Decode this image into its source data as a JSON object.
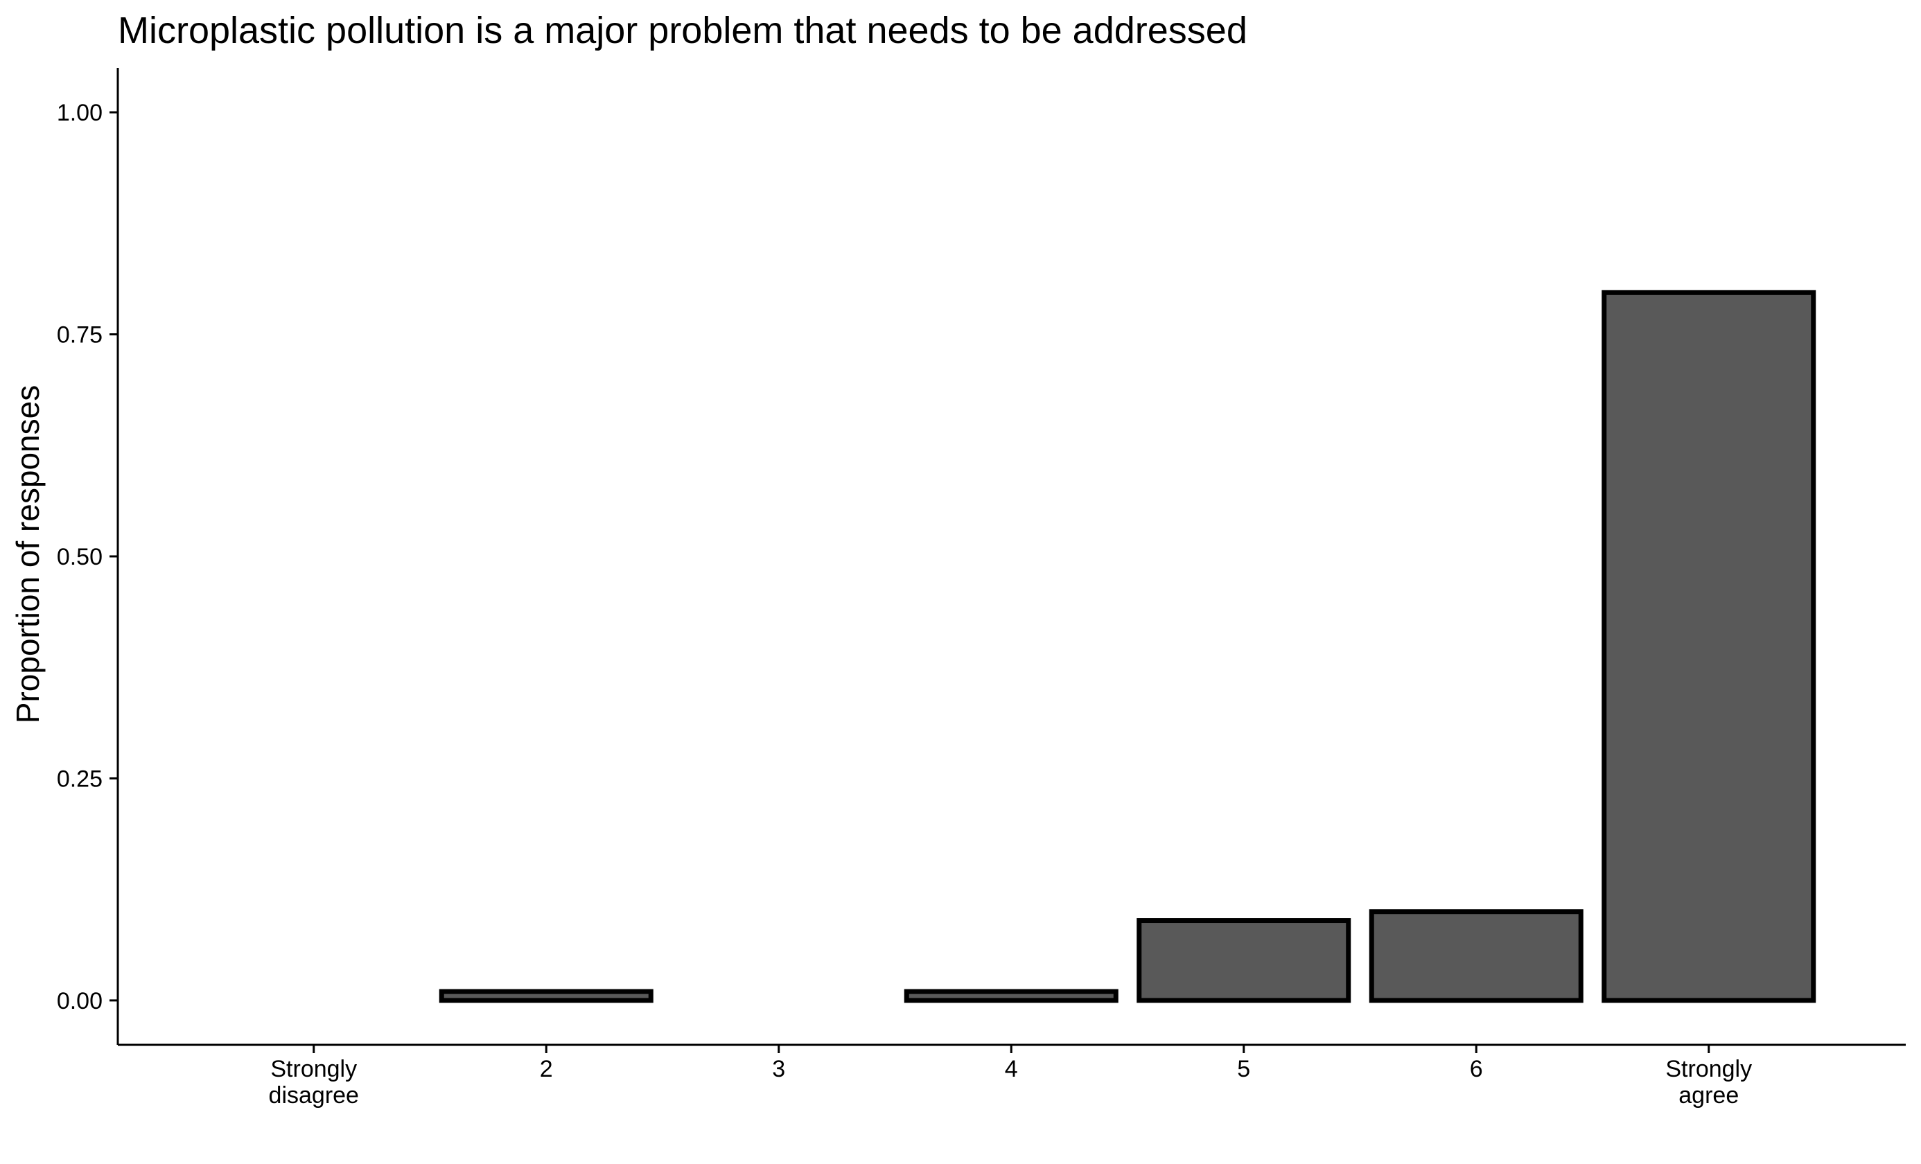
{
  "chart_data": {
    "type": "bar",
    "title": "Microplastic pollution is a major problem that needs to be addressed",
    "xlabel": "",
    "ylabel": "Proportion of responses",
    "categories": [
      [
        "Strongly",
        "disagree"
      ],
      [
        "2"
      ],
      [
        "3"
      ],
      [
        "4"
      ],
      [
        "5"
      ],
      [
        "6"
      ],
      [
        "Strongly",
        "agree"
      ]
    ],
    "values": [
      0.0,
      0.01,
      0.0,
      0.01,
      0.09,
      0.1,
      0.797
    ],
    "ylim": [
      -0.05,
      1.05
    ],
    "yticks": [
      0.0,
      0.25,
      0.5,
      0.75,
      1.0
    ],
    "ytick_labels": [
      "0.00",
      "0.25",
      "0.50",
      "0.75",
      "1.00"
    ],
    "grid": false,
    "legend": "none",
    "colors": {
      "bar_fill": "#595959",
      "bar_stroke": "#000000",
      "axis": "#000000"
    }
  }
}
